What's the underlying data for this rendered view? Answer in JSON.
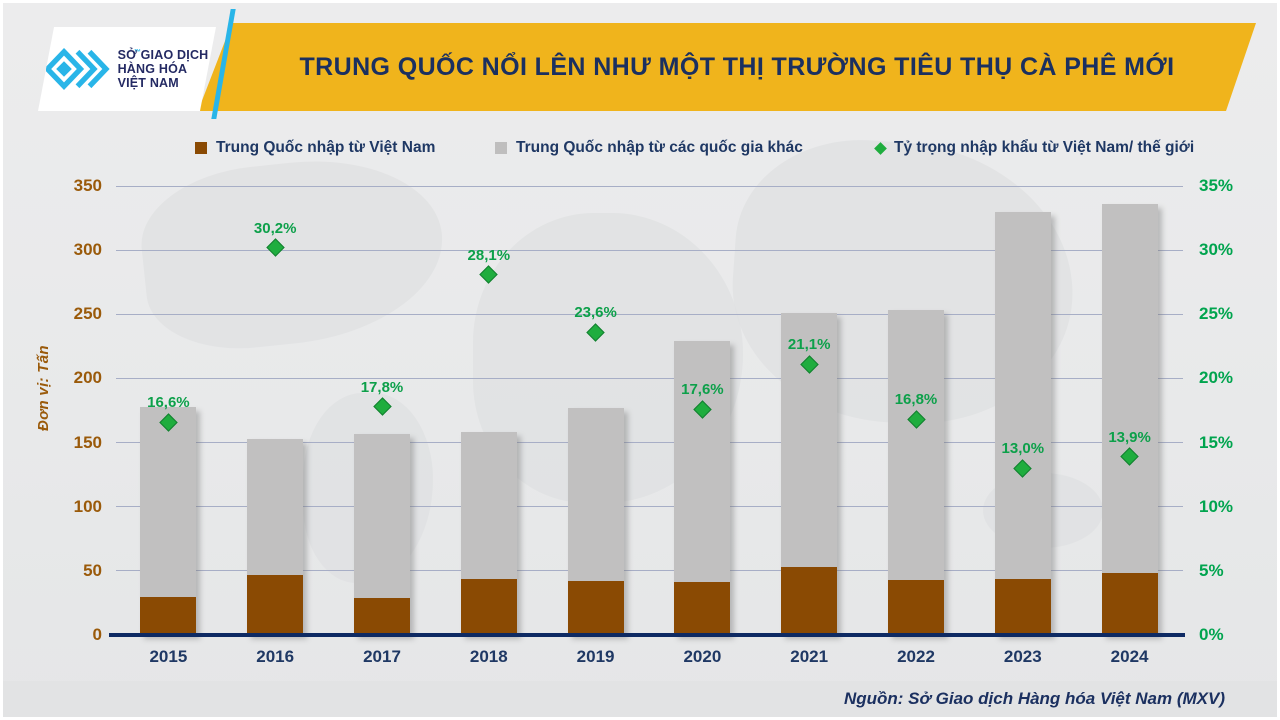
{
  "header": {
    "title": "TRUNG QUỐC NỔI LÊN NHƯ MỘT THỊ TRƯỜNG TIÊU THỤ CÀ PHÊ MỚI",
    "logo": {
      "lines": [
        "SỞ GIAO DỊCH",
        "HÀNG HÓA",
        "VIỆT NAM"
      ],
      "tm": "™"
    }
  },
  "legend": [
    {
      "label": "Trung Quốc nhập từ Việt Nam",
      "marker": "square",
      "color": "#8a4a03"
    },
    {
      "label": "Trung Quốc nhập từ các quốc gia khác",
      "marker": "square",
      "color": "#bfbebe"
    },
    {
      "label": "Tỷ trọng nhập khẩu từ Việt Nam/ thế giới",
      "marker": "diamond",
      "color": "#1fad3e"
    }
  ],
  "chart_data": {
    "type": "bar",
    "subtype": "stacked-bars-with-line-markers",
    "categories": [
      "2015",
      "2016",
      "2017",
      "2018",
      "2019",
      "2020",
      "2021",
      "2022",
      "2023",
      "2024"
    ],
    "series": [
      {
        "name": "Trung Quốc nhập từ Việt Nam",
        "role": "bar-stack-bottom",
        "axis": "left",
        "color": "#8a4a03",
        "values": [
          30,
          47,
          29,
          44,
          42,
          41,
          53,
          43,
          44,
          48
        ]
      },
      {
        "name": "Trung Quốc nhập từ các quốc gia khác",
        "role": "bar-stack-top",
        "axis": "left",
        "color": "#c1c0c0",
        "values": [
          148,
          106,
          128,
          114,
          135,
          188,
          198,
          210,
          286,
          288
        ]
      },
      {
        "name": "Tỷ trọng nhập khẩu từ Việt Nam/ thế giới",
        "role": "scatter-diamond",
        "axis": "right",
        "color": "#1fad3e",
        "label_color": "#0da04a",
        "values": [
          16.6,
          30.2,
          17.8,
          28.1,
          23.6,
          17.6,
          21.1,
          16.8,
          13.0,
          13.9
        ],
        "labels": [
          "16,6%",
          "30,2%",
          "17,8%",
          "28,1%",
          "23,6%",
          "17,6%",
          "21,1%",
          "16,8%",
          "13,0%",
          "13,9%"
        ]
      }
    ],
    "left_axis": {
      "title": "Đơn vị: Tấn",
      "min": 0,
      "max": 350,
      "ticks": [
        "0",
        "50",
        "100",
        "150",
        "200",
        "250",
        "300",
        "350"
      ],
      "color": "#9a5a0a"
    },
    "right_axis": {
      "min": 0,
      "max": 35,
      "ticks": [
        "0%",
        "5%",
        "10%",
        "15%",
        "20%",
        "25%",
        "30%",
        "35%"
      ],
      "color": "#00a44e"
    },
    "grid": true,
    "legend_position": "top"
  },
  "footer": {
    "source": "Nguồn: Sở Giao dịch Hàng hóa Việt Nam (MXV)"
  },
  "colors": {
    "banner": "#f0b41c",
    "title_text": "#1b3060",
    "baseline": "#0e2a63",
    "gridline": "#a7aec6",
    "logo_cyan": "#29b5e8",
    "background": "#e8e9ea"
  }
}
